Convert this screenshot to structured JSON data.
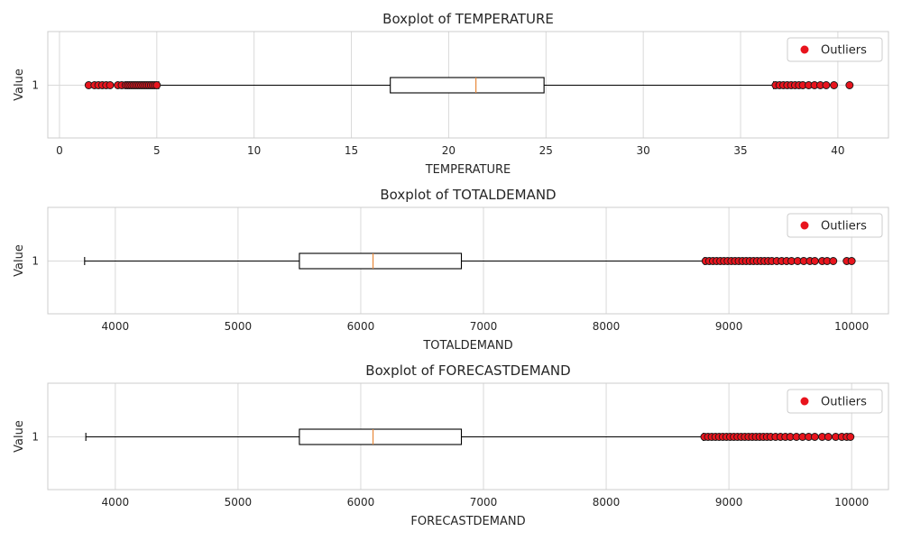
{
  "chart_data": [
    {
      "type": "boxplot",
      "title": "Boxplot of TEMPERATURE",
      "xlabel": "TEMPERATURE",
      "ylabel": "Value",
      "category_label": "1",
      "xlim": [
        -0.6,
        42.6
      ],
      "xticks": [
        0,
        5,
        10,
        15,
        20,
        25,
        30,
        35,
        40
      ],
      "grid": true,
      "legend": {
        "label": "Outliers",
        "placement": "top-right"
      },
      "stats": {
        "whisker_low": 5.1,
        "q1": 17.0,
        "median": 21.4,
        "q3": 24.9,
        "whisker_high": 36.7
      },
      "outliers": [
        1.5,
        1.8,
        2.0,
        2.2,
        2.4,
        2.6,
        3.0,
        3.2,
        3.4,
        3.5,
        3.6,
        3.7,
        3.8,
        3.9,
        4.0,
        4.1,
        4.2,
        4.3,
        4.4,
        4.5,
        4.6,
        4.7,
        4.8,
        4.9,
        5.0,
        36.8,
        37.0,
        37.2,
        37.4,
        37.6,
        37.8,
        38.0,
        38.2,
        38.5,
        38.8,
        39.1,
        39.4,
        39.8,
        40.6
      ]
    },
    {
      "type": "boxplot",
      "title": "Boxplot of TOTALDEMAND",
      "xlabel": "TOTALDEMAND",
      "ylabel": "Value",
      "category_label": "1",
      "xlim": [
        3450,
        10300
      ],
      "xticks": [
        4000,
        5000,
        6000,
        7000,
        8000,
        9000,
        10000
      ],
      "grid": true,
      "legend": {
        "label": "Outliers",
        "placement": "top-right"
      },
      "stats": {
        "whisker_low": 3750,
        "q1": 5500,
        "median": 6100,
        "q3": 6820,
        "whisker_high": 8800
      },
      "outliers": [
        8810,
        8840,
        8870,
        8900,
        8930,
        8960,
        8990,
        9020,
        9050,
        9080,
        9110,
        9140,
        9170,
        9200,
        9230,
        9260,
        9290,
        9320,
        9350,
        9390,
        9430,
        9470,
        9510,
        9560,
        9610,
        9660,
        9700,
        9760,
        9800,
        9850,
        9960,
        10000
      ]
    },
    {
      "type": "boxplot",
      "title": "Boxplot of FORECASTDEMAND",
      "xlabel": "FORECASTDEMAND",
      "ylabel": "Value",
      "category_label": "1",
      "xlim": [
        3450,
        10300
      ],
      "xticks": [
        4000,
        5000,
        6000,
        7000,
        8000,
        9000,
        10000
      ],
      "grid": true,
      "legend": {
        "label": "Outliers",
        "placement": "top-right"
      },
      "stats": {
        "whisker_low": 3760,
        "q1": 5500,
        "median": 6100,
        "q3": 6820,
        "whisker_high": 8790
      },
      "outliers": [
        8800,
        8830,
        8860,
        8890,
        8920,
        8950,
        8980,
        9010,
        9040,
        9070,
        9100,
        9130,
        9160,
        9190,
        9220,
        9250,
        9280,
        9310,
        9340,
        9380,
        9420,
        9460,
        9500,
        9550,
        9600,
        9650,
        9700,
        9760,
        9810,
        9870,
        9920,
        9960,
        9990
      ]
    }
  ]
}
